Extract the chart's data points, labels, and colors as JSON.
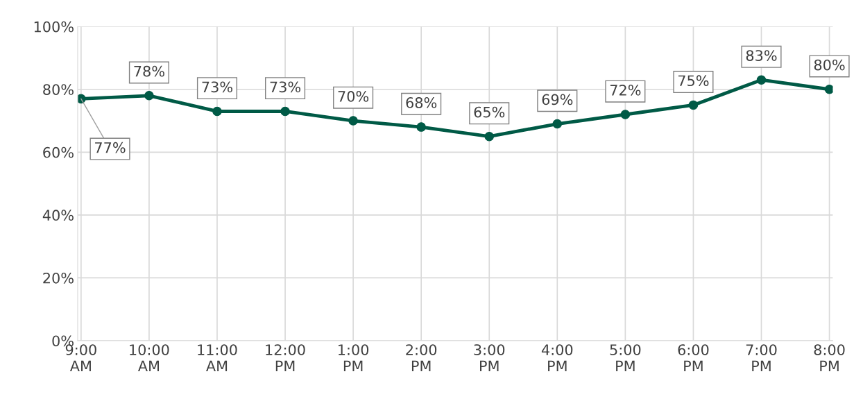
{
  "chart_data": {
    "type": "line",
    "categories": [
      "9:00\nAM",
      "10:00\nAM",
      "11:00\nAM",
      "12:00\nPM",
      "1:00\nPM",
      "2:00\nPM",
      "3:00\nPM",
      "4:00\nPM",
      "5:00\nPM",
      "6:00\nPM",
      "7:00\nPM",
      "8:00\nPM"
    ],
    "series": [
      {
        "color": "#005a46",
        "values": [
          77,
          78,
          73,
          73,
          70,
          68,
          65,
          69,
          72,
          75,
          83,
          80
        ]
      }
    ],
    "ylim": [
      0,
      100
    ],
    "yticks": [
      {
        "value": 0,
        "label": "0%"
      },
      {
        "value": 20,
        "label": "20%"
      },
      {
        "value": 40,
        "label": "40%"
      },
      {
        "value": 60,
        "label": "60%"
      },
      {
        "value": 80,
        "label": "80%"
      },
      {
        "value": 100,
        "label": "100%"
      }
    ],
    "value_labels": [
      "77%",
      "78%",
      "73%",
      "73%",
      "70%",
      "68%",
      "65%",
      "69%",
      "72%",
      "75%",
      "83%",
      "80%"
    ],
    "grid": true,
    "marker": "circle",
    "line_style": "solid",
    "legend": false
  }
}
